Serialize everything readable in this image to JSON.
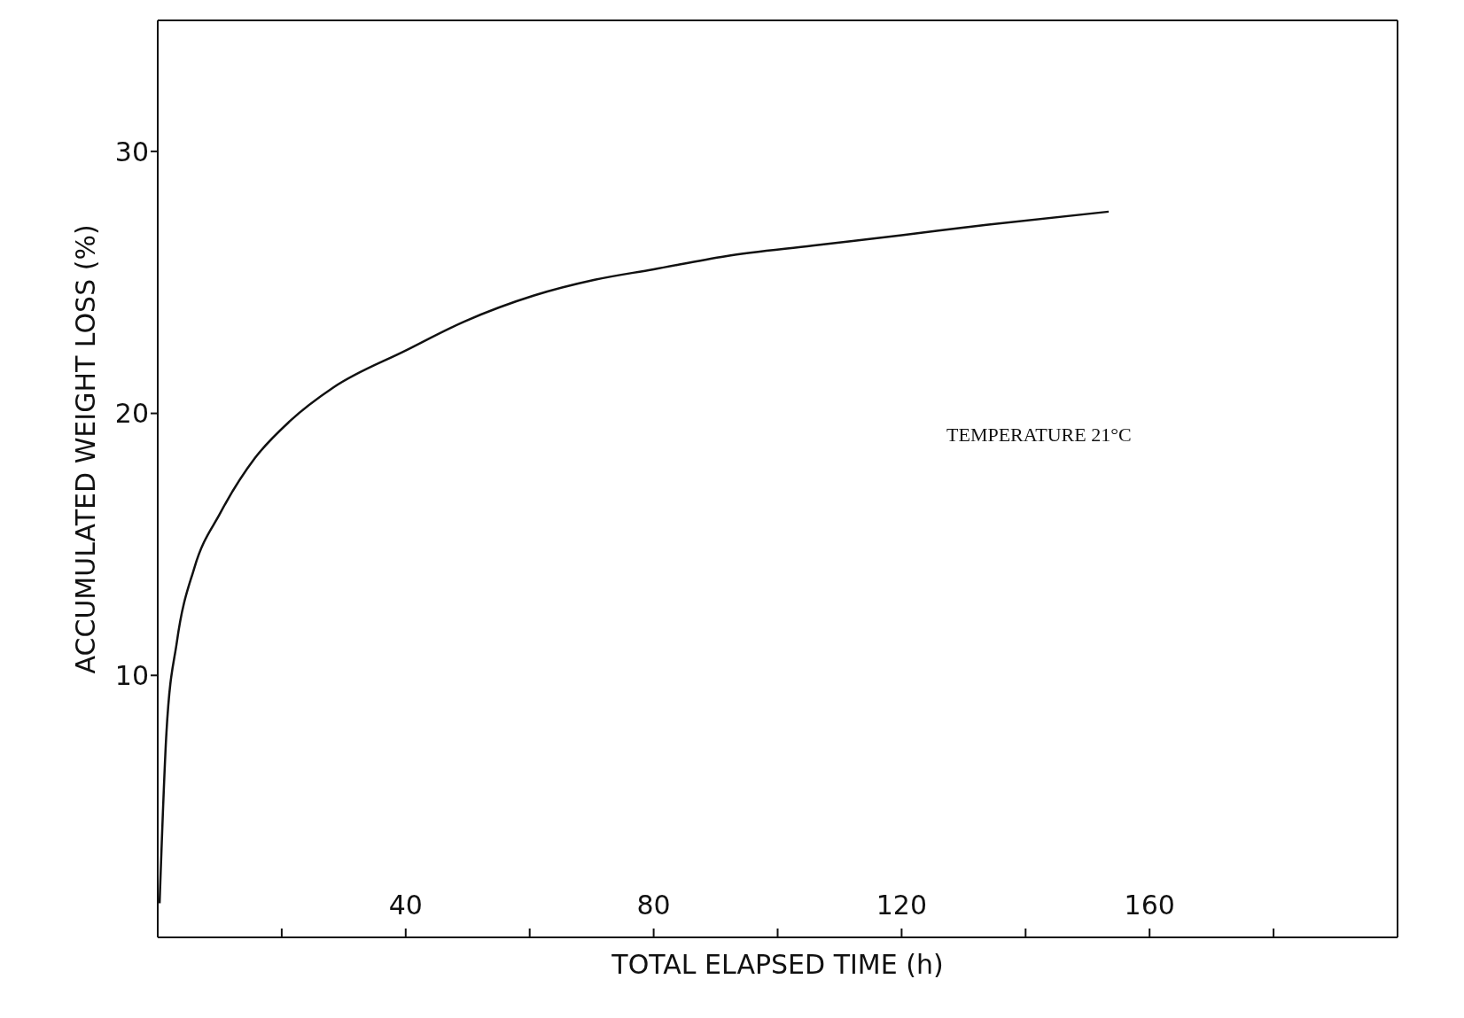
{
  "chart_data": {
    "type": "line",
    "xlabel": "TOTAL ELAPSED TIME (h)",
    "ylabel": "ACCUMULATED WEIGHT LOSS (%)",
    "annotations": [
      "TEMPERATURE 21°C"
    ],
    "xlim": [
      0,
      200
    ],
    "ylim": [
      0,
      35
    ],
    "xticks": [
      {
        "value": 20,
        "label": null
      },
      40,
      {
        "value": 60,
        "label": null
      },
      80,
      {
        "value": 100,
        "label": null
      },
      120,
      {
        "value": 140,
        "label": null
      },
      160,
      {
        "value": 180,
        "label": null
      }
    ],
    "yticks": [
      10,
      20,
      30
    ],
    "marker": "none",
    "line_style": "solid",
    "series": [
      {
        "color": "#111111",
        "x": [
          0.3,
          1.4,
          3.1,
          5.9,
          10.1,
          15.7,
          21.3,
          28.4,
          40,
          49.4,
          60.7,
          70.5,
          80,
          91.6,
          105.6,
          120,
          133.7,
          153.4
        ],
        "values": [
          1.3,
          7.8,
          11.3,
          14.1,
          16.2,
          18.3,
          19.7,
          21.0,
          22.4,
          23.5,
          24.5,
          25.1,
          25.5,
          26.0,
          26.4,
          26.8,
          27.2,
          27.7
        ]
      }
    ]
  }
}
